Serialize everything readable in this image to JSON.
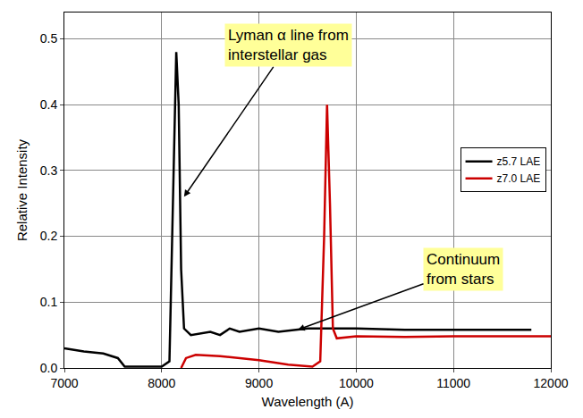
{
  "chart_data": {
    "type": "line",
    "x_label": "Wavelength (A)",
    "y_label": "Relative Intensity",
    "xlim": [
      7000,
      12000
    ],
    "xticks": [
      7000,
      8000,
      9000,
      10000,
      11000,
      12000
    ],
    "ylim": [
      0,
      0.54
    ],
    "yticks": [
      {
        "value": 0,
        "label": "0.0"
      },
      0.1,
      0.2,
      0.3,
      0.4,
      0.5
    ],
    "grid": true,
    "legend": "right",
    "series": [
      {
        "name": "z5.7 LAE",
        "color": "#000000",
        "x": [
          7000,
          7200,
          7400,
          7550,
          7620,
          8000,
          8080,
          8120,
          8150,
          8175,
          8200,
          8230,
          8300,
          8500,
          8600,
          8700,
          8800,
          9000,
          9200,
          9500,
          10000,
          10500,
          11000,
          11800
        ],
        "values": [
          0.03,
          0.025,
          0.022,
          0.015,
          0.002,
          0.002,
          0.01,
          0.3,
          0.48,
          0.4,
          0.15,
          0.06,
          0.05,
          0.055,
          0.05,
          0.06,
          0.055,
          0.06,
          0.055,
          0.06,
          0.06,
          0.058,
          0.058,
          0.058
        ]
      },
      {
        "name": "z7.0 LAE",
        "color": "#cc0000",
        "x": [
          8200,
          8250,
          8350,
          8600,
          9000,
          9300,
          9550,
          9630,
          9670,
          9700,
          9730,
          9760,
          9800,
          10000,
          10500,
          11000,
          12000
        ],
        "values": [
          0.0,
          0.015,
          0.02,
          0.018,
          0.012,
          0.005,
          0.002,
          0.01,
          0.2,
          0.4,
          0.25,
          0.06,
          0.045,
          0.048,
          0.047,
          0.048,
          0.048
        ]
      }
    ],
    "annotations": [
      {
        "text": "Lyman α line from interstellar gas",
        "x": 9300,
        "y": 0.49,
        "arrow_x": 8230,
        "arrow_y": 0.26
      },
      {
        "text": "Continuum from stars",
        "x": 11100,
        "y": 0.15,
        "arrow_x": 9400,
        "arrow_y": 0.058
      }
    ]
  }
}
